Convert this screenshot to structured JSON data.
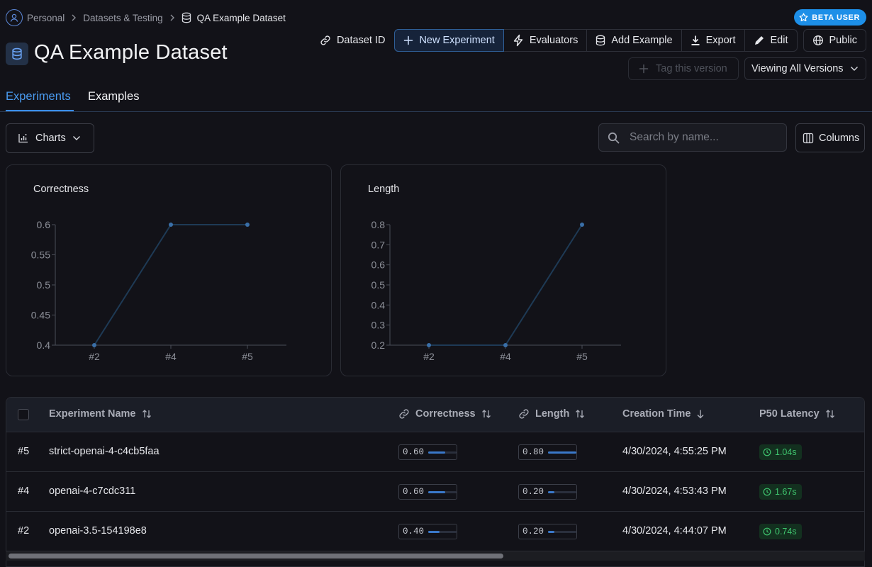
{
  "breadcrumb": {
    "items": [
      "Personal",
      "Datasets & Testing"
    ],
    "current": "QA Example Dataset"
  },
  "badge": {
    "label": "BETA USER"
  },
  "page": {
    "title": "QA Example Dataset"
  },
  "toolbar": {
    "dataset_id": "Dataset ID",
    "new_experiment": "New Experiment",
    "evaluators": "Evaluators",
    "add_example": "Add Example",
    "export": "Export",
    "edit": "Edit",
    "public": "Public",
    "tag_version": "Tag this version",
    "viewing_versions": "Viewing All Versions"
  },
  "tabs": [
    "Experiments",
    "Examples"
  ],
  "controls": {
    "charts": "Charts",
    "search_placeholder": "Search by name...",
    "columns": "Columns"
  },
  "chart_data": [
    {
      "type": "line",
      "title": "Correctness",
      "categories": [
        "#2",
        "#4",
        "#5"
      ],
      "values": [
        0.4,
        0.6,
        0.6
      ],
      "ylim": [
        0.4,
        0.6
      ],
      "yticks": [
        "0.6",
        "0.55",
        "0.5",
        "0.45",
        "0.4"
      ],
      "color": "#1e3a55"
    },
    {
      "type": "line",
      "title": "Length",
      "categories": [
        "#2",
        "#4",
        "#5"
      ],
      "values": [
        0.2,
        0.2,
        0.8
      ],
      "ylim": [
        0.2,
        0.8
      ],
      "yticks": [
        "0.8",
        "0.7",
        "0.6",
        "0.5",
        "0.4",
        "0.3",
        "0.2"
      ],
      "color": "#1e3a55"
    }
  ],
  "table": {
    "headers": {
      "name": "Experiment Name",
      "correctness": "Correctness",
      "length": "Length",
      "creation": "Creation Time",
      "latency": "P50 Latency"
    },
    "rows": [
      {
        "id": "#5",
        "name": "strict-openai-4-c4cb5faa",
        "correctness": "0.60",
        "length": "0.80",
        "created": "4/30/2024, 4:55:25 PM",
        "latency": "1.04s"
      },
      {
        "id": "#4",
        "name": "openai-4-c7cdc311",
        "correctness": "0.60",
        "length": "0.20",
        "created": "4/30/2024, 4:53:43 PM",
        "latency": "1.67s"
      },
      {
        "id": "#2",
        "name": "openai-3.5-154198e8",
        "correctness": "0.40",
        "length": "0.20",
        "created": "4/30/2024, 4:44:07 PM",
        "latency": "0.74s"
      }
    ]
  },
  "colors": {
    "accent": "#3a8ef0",
    "badge": "#1d8fe8",
    "latency_green": "#3fc46e"
  }
}
